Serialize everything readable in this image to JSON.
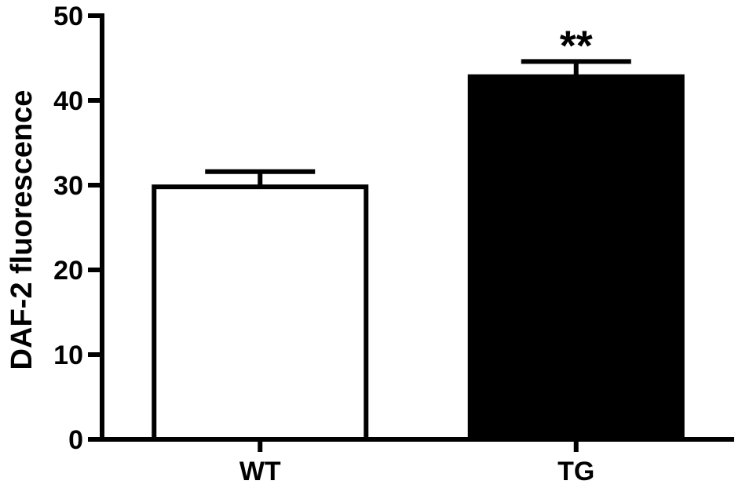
{
  "chart_data": {
    "type": "bar",
    "title": "",
    "xlabel": "",
    "ylabel": "DAF-2 fluorescence",
    "ylim": [
      0,
      50
    ],
    "yticks": [
      0,
      10,
      20,
      30,
      40,
      50
    ],
    "grid": false,
    "categories": [
      "WT",
      "TG"
    ],
    "values": [
      29.8,
      42.8
    ],
    "errors": [
      1.8,
      1.8
    ],
    "bar_fill": [
      "#ffffff",
      "#000000"
    ],
    "bar_stroke": "#000000",
    "annotations": [
      {
        "category": "TG",
        "text": "**"
      }
    ]
  }
}
